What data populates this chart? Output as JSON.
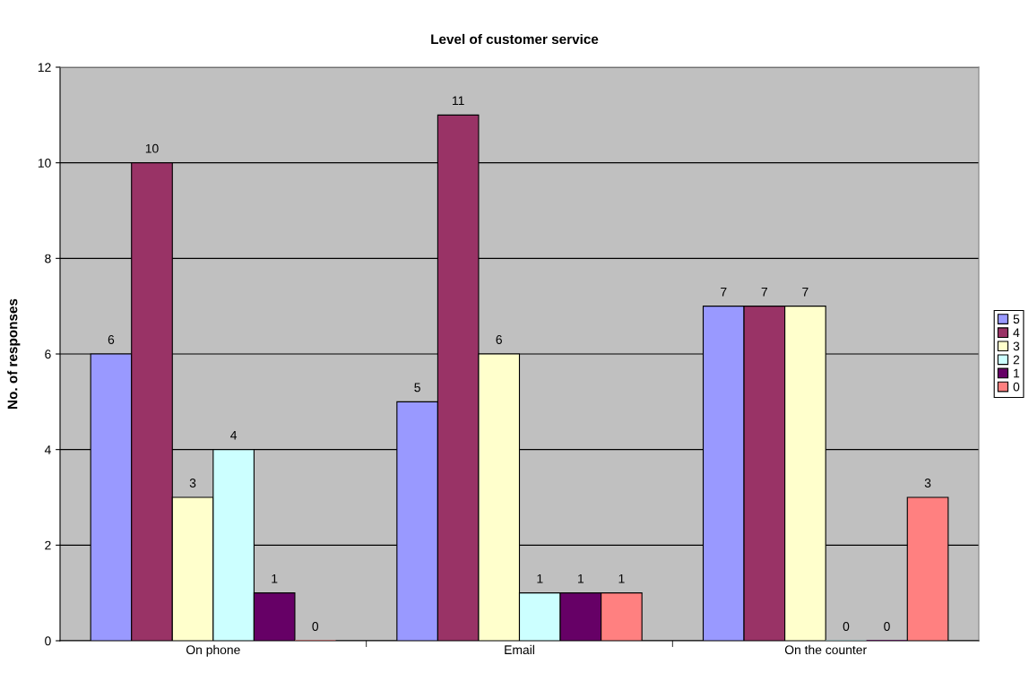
{
  "chart_data": {
    "type": "bar",
    "title": "Level of customer service",
    "ylabel": "No. of responses",
    "categories": [
      "On phone",
      "Email",
      "On the counter"
    ],
    "series": [
      {
        "name": "5",
        "color": "#9999ff",
        "values": [
          6,
          5,
          7
        ]
      },
      {
        "name": "4",
        "color": "#993366",
        "values": [
          10,
          11,
          7
        ]
      },
      {
        "name": "3",
        "color": "#ffffcc",
        "values": [
          3,
          6,
          7
        ]
      },
      {
        "name": "2",
        "color": "#ccffff",
        "values": [
          4,
          1,
          0
        ]
      },
      {
        "name": "1",
        "color": "#660066",
        "values": [
          1,
          1,
          0
        ]
      },
      {
        "name": "0",
        "color": "#ff8080",
        "values": [
          0,
          1,
          3
        ]
      }
    ],
    "ylim": [
      0,
      12
    ],
    "yticks": [
      0,
      2,
      4,
      6,
      8,
      10,
      12
    ],
    "grid": "y",
    "legend": "right",
    "data_labels": true
  }
}
